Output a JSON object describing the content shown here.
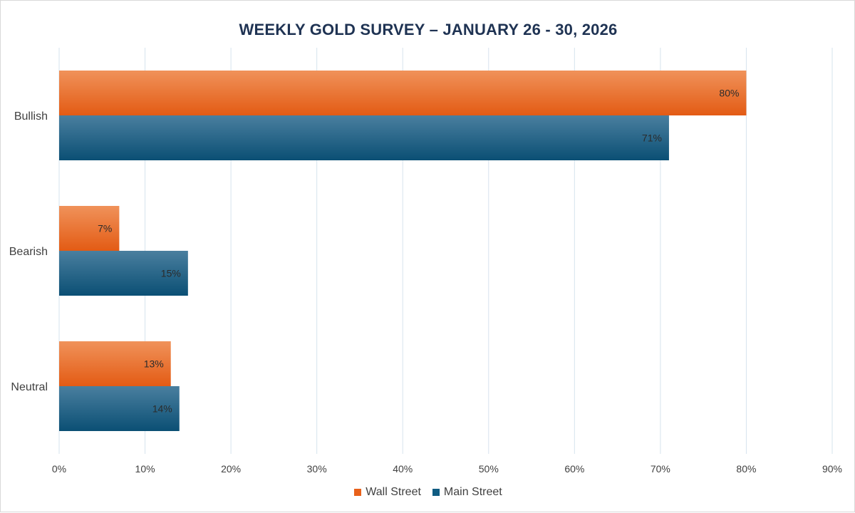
{
  "chart_data": {
    "type": "bar",
    "orientation": "horizontal",
    "title": "WEEKLY GOLD SURVEY – JANUARY 26 - 30, 2026",
    "categories": [
      "Bullish",
      "Bearish",
      "Neutral"
    ],
    "series": [
      {
        "name": "Wall Street",
        "values": [
          80,
          7,
          13
        ],
        "labels": [
          "80%",
          "7%",
          "13%"
        ],
        "color": "#e8611a"
      },
      {
        "name": "Main Street",
        "values": [
          71,
          15,
          14
        ],
        "labels": [
          "71%",
          "15%",
          "14%"
        ],
        "color": "#0f5c82"
      }
    ],
    "xlim": [
      0,
      90
    ],
    "xticks": [
      "0%",
      "10%",
      "20%",
      "30%",
      "40%",
      "50%",
      "60%",
      "70%",
      "80%",
      "90%"
    ],
    "grid": "vertical",
    "legend_position": "bottom"
  }
}
